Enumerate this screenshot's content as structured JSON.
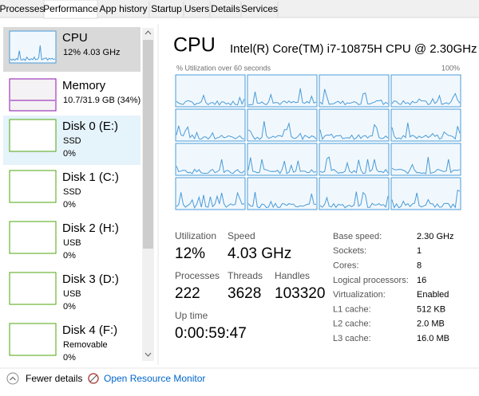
{
  "tabs": [
    "Processes",
    "Performance",
    "App history",
    "Startup",
    "Users",
    "Details",
    "Services"
  ],
  "sidebar": [
    {
      "name": "CPU",
      "line1": "12%  4.03 GHz"
    },
    {
      "name": "Memory",
      "line1": "10.7/31.9 GB (34%)"
    },
    {
      "name": "Disk 0 (E:)",
      "line1": "SSD",
      "line2": "0%"
    },
    {
      "name": "Disk 1 (C:)",
      "line1": "SSD",
      "line2": "0%"
    },
    {
      "name": "Disk 2 (H:)",
      "line1": "USB",
      "line2": "0%"
    },
    {
      "name": "Disk 3 (D:)",
      "line1": "USB",
      "line2": "0%"
    },
    {
      "name": "Disk 4 (F:)",
      "line1": "Removable",
      "line2": "0%"
    }
  ],
  "main": {
    "title": "CPU",
    "processor": "Intel(R) Core(TM) i7-10875H CPU @ 2.30GHz",
    "graph_label": "% Utilization over 60 seconds",
    "graph_max": "100%",
    "stats": [
      {
        "label": "Utilization",
        "value": "12%"
      },
      {
        "label": "Speed",
        "value": "4.03 GHz"
      },
      {
        "label": "Processes",
        "value": "222"
      },
      {
        "label": "Threads",
        "value": "3628"
      },
      {
        "label": "Handles",
        "value": "103320"
      },
      {
        "label": "Up time",
        "value": "0:00:59:47"
      }
    ],
    "specs": [
      {
        "label": "Base speed:",
        "value": "2.30 GHz"
      },
      {
        "label": "Sockets:",
        "value": "1"
      },
      {
        "label": "Cores:",
        "value": "8"
      },
      {
        "label": "Logical processors:",
        "value": "16"
      },
      {
        "label": "Virtualization:",
        "value": "Enabled"
      },
      {
        "label": "L1 cache:",
        "value": "512 KB"
      },
      {
        "label": "L2 cache:",
        "value": "2.0 MB"
      },
      {
        "label": "L3 cache:",
        "value": "16.0 MB"
      }
    ]
  },
  "footer": {
    "fewer": "Fewer details",
    "monitor": "Open Resource Monitor"
  }
}
